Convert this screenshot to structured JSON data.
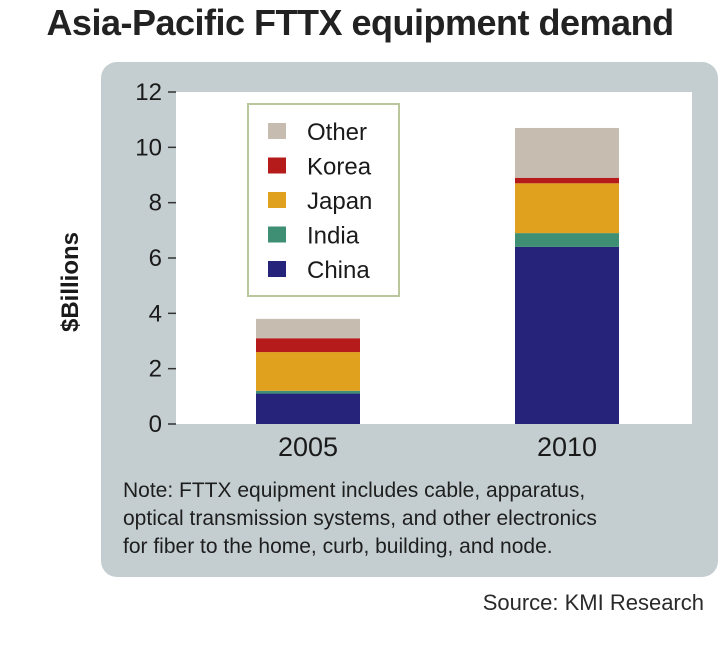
{
  "chart_data": {
    "type": "bar",
    "stacked": true,
    "title": "Asia-Pacific FTTX equipment demand",
    "ylabel": "$Billions",
    "xlabel": "",
    "ylim": [
      0,
      12
    ],
    "yticks": [
      "0",
      "2",
      "4",
      "6",
      "8",
      "10",
      "12"
    ],
    "categories": [
      "2005",
      "2010"
    ],
    "series": [
      {
        "name": "China",
        "values": [
          1.1,
          6.4
        ],
        "color": "#25247a"
      },
      {
        "name": "India",
        "values": [
          0.1,
          0.5
        ],
        "color": "#3e8f73"
      },
      {
        "name": "Japan",
        "values": [
          1.4,
          1.8
        ],
        "color": "#e0a11e"
      },
      {
        "name": "Korea",
        "values": [
          0.5,
          0.2
        ],
        "color": "#b51b1b"
      },
      {
        "name": "Other",
        "values": [
          0.7,
          1.8
        ],
        "color": "#c6bdb0"
      }
    ],
    "legend_order": [
      "Other",
      "Korea",
      "Japan",
      "India",
      "China"
    ],
    "legend_position": "top-left",
    "grid": false
  },
  "note_lines": [
    "Note: FTTX equipment includes cable, apparatus,",
    "optical transmission systems, and other electronics",
    "for fiber to the home, curb, building, and node."
  ],
  "source": "Source: KMI Research",
  "colors": {
    "panel": "#c4ced1",
    "plot_background": "#ffffff",
    "legend_border": "#b9c79a"
  }
}
